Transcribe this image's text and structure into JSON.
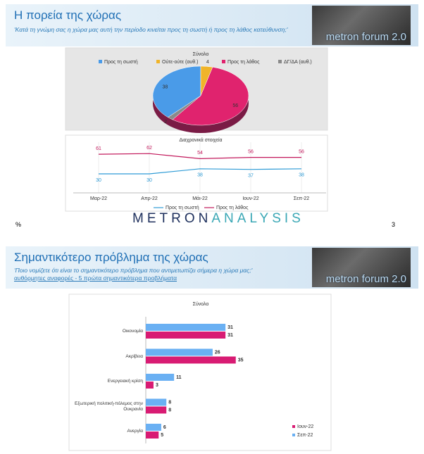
{
  "slides": [
    {
      "title": "Η πορεία της χώρας",
      "subtitle": "'Κατά τη γνώμη σας η χώρα μας αυτή την περίοδο κινείται προς τη σωστή ή προς τη λάθος κατεύθυνση;'",
      "logo": "metron forum 2.0",
      "brand": [
        "METRON",
        "ANALYSIS"
      ],
      "footnote": "%",
      "page": "3"
    },
    {
      "title": "Σημαντικότερο πρόβλημα της χώρας",
      "subtitle": "'Ποιο νομίζετε ότι είναι το σημαντικότερο πρόβλημα που αντιμετωπίζει σήμερα η χώρα μας;'",
      "note": "αυθόρμητες αναφορές - 5 πρώτα σημαντικότερα προβλήματα",
      "logo": "metron forum 2.0"
    }
  ],
  "chart_data": [
    {
      "type": "pie",
      "title": "Σύνολο",
      "categories": [
        "Προς τη σωστή",
        "Ούτε-ούτε (αυθ.)",
        "Προς τη λάθος",
        "ΔΓ/ΔΑ (αυθ.)"
      ],
      "values": [
        38,
        4,
        56,
        2
      ],
      "colors": [
        "#4a9be8",
        "#f0b429",
        "#e0236e",
        "#8a8a8a"
      ]
    },
    {
      "type": "line",
      "title": "Διαχρονικά στοιχεία",
      "categories": [
        "Μαρ-22",
        "Απρ-22",
        "Μάι-22",
        "Ιουν-22",
        "Σεπ-22"
      ],
      "series": [
        {
          "name": "Προς τη σωστή",
          "color": "#2e9bd6",
          "values": [
            30,
            30,
            38,
            37,
            38
          ]
        },
        {
          "name": "Προς τη λάθος",
          "color": "#c2185b",
          "values": [
            61,
            62,
            54,
            56,
            56
          ]
        }
      ],
      "ylim": [
        0,
        80
      ]
    },
    {
      "type": "hbar",
      "title": "Σύνολο",
      "categories": [
        "Οικονομία",
        "Ακρίβεια",
        "Ενεργειακή κρίση",
        "Εξωτερική πολιτική-πόλεμος στην Ουκρανία",
        "Ανεργία"
      ],
      "series": [
        {
          "name": "Ιουν-22",
          "color": "#d81b73",
          "values": [
            31,
            35,
            3,
            8,
            5
          ]
        },
        {
          "name": "Σεπ-22",
          "color": "#6ab0f3",
          "values": [
            31,
            26,
            11,
            8,
            6
          ]
        }
      ],
      "xlim": [
        0,
        70
      ]
    }
  ]
}
